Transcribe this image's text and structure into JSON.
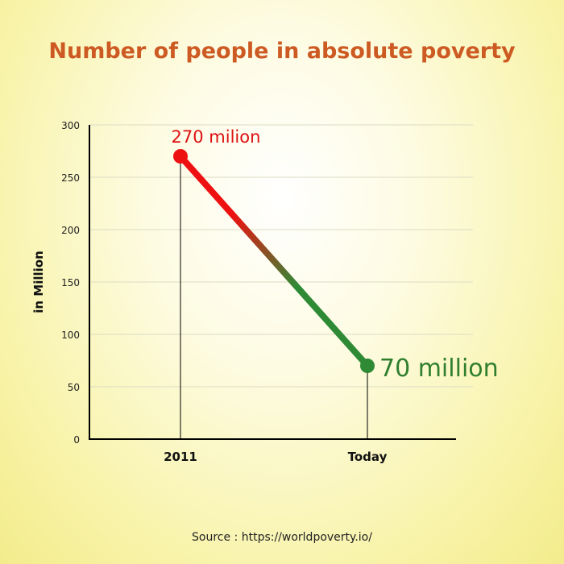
{
  "chart_data": {
    "type": "line",
    "title": "Number of people in absolute poverty",
    "xlabel": "",
    "ylabel": "in Million",
    "ylim": [
      0,
      300
    ],
    "yticks": [
      0,
      50,
      100,
      150,
      200,
      250,
      300
    ],
    "categories": [
      "2011",
      "Today"
    ],
    "values": [
      270,
      70
    ],
    "data_labels": [
      "270 milion",
      "70 million"
    ],
    "grid": true,
    "colors": {
      "start": "#ee1111",
      "end": "#2f8a36",
      "title": "#cc5a22",
      "start_label": "#dd1111",
      "end_label": "#2f7f2f"
    }
  },
  "source": "Source : https://worldpoverty.io/"
}
